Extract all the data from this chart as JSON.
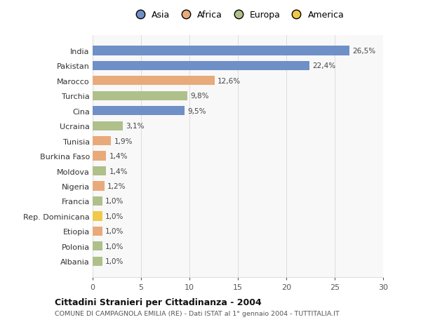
{
  "countries": [
    "India",
    "Pakistan",
    "Marocco",
    "Turchia",
    "Cina",
    "Ucraina",
    "Tunisia",
    "Burkina Faso",
    "Moldova",
    "Nigeria",
    "Francia",
    "Rep. Dominicana",
    "Etiopia",
    "Polonia",
    "Albania"
  ],
  "values": [
    26.5,
    22.4,
    12.6,
    9.8,
    9.5,
    3.1,
    1.9,
    1.4,
    1.4,
    1.2,
    1.0,
    1.0,
    1.0,
    1.0,
    1.0
  ],
  "labels": [
    "26,5%",
    "22,4%",
    "12,6%",
    "9,8%",
    "9,5%",
    "3,1%",
    "1,9%",
    "1,4%",
    "1,4%",
    "1,2%",
    "1,0%",
    "1,0%",
    "1,0%",
    "1,0%",
    "1,0%"
  ],
  "continents": [
    "Asia",
    "Asia",
    "Africa",
    "Europa",
    "Asia",
    "Europa",
    "Africa",
    "Africa",
    "Europa",
    "Africa",
    "Europa",
    "America",
    "Africa",
    "Europa",
    "Europa"
  ],
  "continent_colors": {
    "Asia": "#6f8fc7",
    "Africa": "#e8aa7a",
    "Europa": "#afc08a",
    "America": "#f0c84a"
  },
  "legend_labels": [
    "Asia",
    "Africa",
    "Europa",
    "America"
  ],
  "legend_colors": [
    "#6f8fc7",
    "#e8aa7a",
    "#afc08a",
    "#f0c84a"
  ],
  "title": "Cittadini Stranieri per Cittadinanza - 2004",
  "subtitle": "COMUNE DI CAMPAGNOLA EMILIA (RE) - Dati ISTAT al 1° gennaio 2004 - TUTTITALIA.IT",
  "xlim": [
    0,
    30
  ],
  "xticks": [
    0,
    5,
    10,
    15,
    20,
    25,
    30
  ],
  "background_color": "#ffffff",
  "plot_bg_color": "#f8f8f8",
  "bar_height": 0.62,
  "grid_color": "#dddddd"
}
